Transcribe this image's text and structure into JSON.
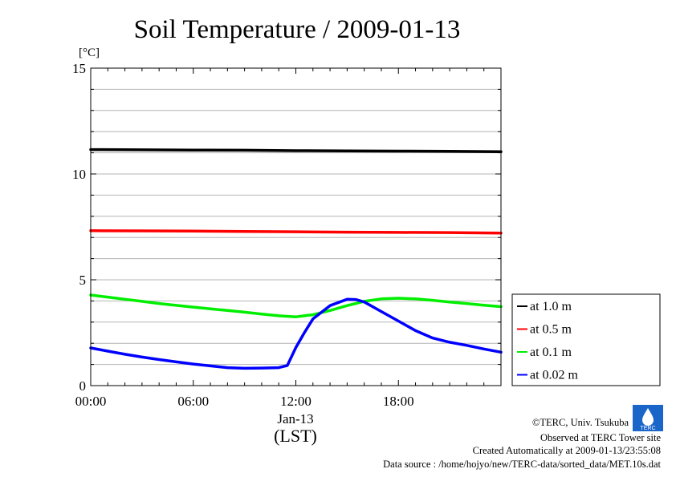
{
  "chart_data": {
    "type": "line",
    "title": "Soil Temperature / 2009-01-13",
    "ylabel": "[°C]",
    "xlabel_date": "Jan-13",
    "xlabel": "(LST)",
    "ylim": [
      0,
      15
    ],
    "xlim": [
      0,
      24
    ],
    "y_ticks": [
      0,
      5,
      10,
      15
    ],
    "x_ticks": [
      {
        "value": 0,
        "label": "00:00"
      },
      {
        "value": 6,
        "label": "06:00"
      },
      {
        "value": 12,
        "label": "12:00"
      },
      {
        "value": 18,
        "label": "18:00"
      }
    ],
    "grid": true,
    "legend_position": "right",
    "series": [
      {
        "name": "at 1.0 m",
        "color": "#000000",
        "x": [
          0,
          3,
          6,
          9,
          12,
          15,
          18,
          21,
          24
        ],
        "values": [
          11.15,
          11.14,
          11.13,
          11.12,
          11.1,
          11.09,
          11.08,
          11.07,
          11.05
        ]
      },
      {
        "name": "at 0.5 m",
        "color": "#ff0000",
        "x": [
          0,
          3,
          6,
          9,
          12,
          15,
          18,
          21,
          24
        ],
        "values": [
          7.32,
          7.31,
          7.3,
          7.28,
          7.27,
          7.25,
          7.24,
          7.23,
          7.21
        ]
      },
      {
        "name": "at 0.1 m",
        "color": "#00ee00",
        "x": [
          0,
          1,
          2,
          3,
          4,
          5,
          6,
          7,
          8,
          9,
          10,
          11,
          12,
          13,
          14,
          15,
          16,
          17,
          18,
          19,
          20,
          21,
          22,
          23,
          24
        ],
        "values": [
          4.28,
          4.18,
          4.08,
          3.98,
          3.88,
          3.79,
          3.71,
          3.63,
          3.55,
          3.47,
          3.38,
          3.3,
          3.25,
          3.35,
          3.55,
          3.78,
          3.98,
          4.1,
          4.13,
          4.1,
          4.03,
          3.95,
          3.88,
          3.8,
          3.73
        ]
      },
      {
        "name": "at 0.02 m",
        "color": "#0000ff",
        "x": [
          0,
          1,
          2,
          3,
          4,
          5,
          6,
          7,
          8,
          9,
          10,
          11,
          11.5,
          12,
          12.5,
          13,
          14,
          15,
          15.5,
          16,
          17,
          18,
          19,
          20,
          21,
          22,
          23,
          24
        ],
        "values": [
          1.78,
          1.63,
          1.48,
          1.35,
          1.23,
          1.12,
          1.02,
          0.93,
          0.85,
          0.82,
          0.83,
          0.85,
          0.95,
          1.8,
          2.5,
          3.15,
          3.78,
          4.08,
          4.07,
          3.95,
          3.5,
          3.05,
          2.6,
          2.25,
          2.05,
          1.9,
          1.73,
          1.58
        ]
      }
    ]
  },
  "credits": {
    "copyright": "©TERC, Univ. Tsukuba",
    "observed": "Observed at TERC Tower site",
    "created": "Created Automatically at 2009-01-13/23:55:08",
    "source": "Data source : /home/hojyo/new/TERC-data/sorted_data/MET.10s.dat",
    "logo_text": "TERC"
  }
}
